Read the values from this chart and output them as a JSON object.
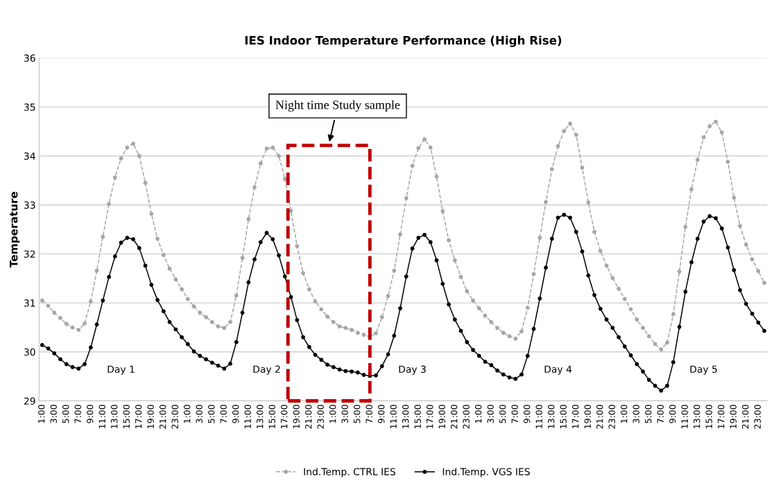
{
  "chart_data": {
    "type": "line",
    "title": "IES Indoor Temperature Performance (High Rise)",
    "ylabel": "Temperature",
    "categories": [
      "1:00",
      null,
      "3:00",
      null,
      "5:00",
      null,
      "7:00",
      null,
      "9:00",
      null,
      "11:00",
      null,
      "13:00",
      null,
      "15:00",
      null,
      "17:00",
      null,
      "19:00",
      null,
      "21:00",
      null,
      "23:00",
      null,
      "1:00",
      null,
      "3:00",
      null,
      "5:00",
      null,
      "7:00",
      null,
      "9:00",
      null,
      "11:00",
      null,
      "13:00",
      null,
      "15:00",
      null,
      "17:00",
      null,
      "19:00",
      null,
      "21:00",
      null,
      "23:00",
      null,
      "1:00",
      null,
      "3:00",
      null,
      "5:00",
      null,
      "7:00",
      null,
      "9:00",
      null,
      "11:00",
      null,
      "13:00",
      null,
      "15:00",
      null,
      "17:00",
      null,
      "19:00",
      null,
      "21:00",
      null,
      "23:00",
      null,
      "1:00",
      null,
      "3:00",
      null,
      "5:00",
      null,
      "7:00",
      null,
      "9:00",
      null,
      "11:00",
      null,
      "13:00",
      null,
      "15:00",
      null,
      "17:00",
      null,
      "19:00",
      null,
      "21:00",
      null,
      "23:00",
      null,
      "1:00",
      null,
      "3:00",
      null,
      "5:00",
      null,
      "7:00",
      null,
      "9:00",
      null,
      "11:00",
      null,
      "13:00",
      null,
      "15:00",
      null,
      "17:00",
      null,
      "19:00",
      null,
      "21:00",
      null,
      "23:00",
      null
    ],
    "series": [
      {
        "name": "Ind.Temp. CTRL IES",
        "color": "#a6a6a6",
        "line_style": "dashed",
        "values": [
          31.05,
          30.94,
          30.8,
          30.69,
          30.57,
          30.5,
          30.45,
          30.58,
          31.03,
          31.66,
          32.35,
          33.02,
          33.56,
          33.95,
          34.17,
          34.25,
          34.0,
          33.45,
          32.82,
          32.31,
          31.98,
          31.7,
          31.48,
          31.28,
          31.08,
          30.93,
          30.8,
          30.71,
          30.61,
          30.52,
          30.49,
          30.61,
          31.15,
          31.92,
          32.71,
          33.36,
          33.85,
          34.15,
          34.17,
          34.0,
          33.53,
          32.88,
          32.16,
          31.61,
          31.28,
          31.03,
          30.87,
          30.72,
          30.61,
          30.52,
          30.49,
          30.45,
          30.39,
          30.35,
          30.31,
          30.38,
          30.71,
          31.14,
          31.66,
          32.4,
          33.14,
          33.8,
          34.16,
          34.34,
          34.17,
          33.58,
          32.87,
          32.28,
          31.87,
          31.53,
          31.24,
          31.05,
          30.89,
          30.74,
          30.61,
          30.49,
          30.39,
          30.32,
          30.27,
          30.42,
          30.9,
          31.59,
          32.33,
          33.06,
          33.73,
          34.2,
          34.51,
          34.66,
          34.43,
          33.76,
          33.05,
          32.45,
          32.06,
          31.76,
          31.51,
          31.29,
          31.08,
          30.87,
          30.66,
          30.49,
          30.32,
          30.16,
          30.05,
          30.19,
          30.77,
          31.64,
          32.55,
          33.32,
          33.92,
          34.38,
          34.61,
          34.7,
          34.48,
          33.88,
          33.15,
          32.57,
          32.19,
          31.89,
          31.65,
          31.41
        ]
      },
      {
        "name": "Ind.Temp. VGS IES",
        "color": "#000000",
        "line_style": "solid",
        "values": [
          30.14,
          30.07,
          29.97,
          29.85,
          29.75,
          29.69,
          29.66,
          29.75,
          30.09,
          30.56,
          31.05,
          31.53,
          31.95,
          32.23,
          32.33,
          32.3,
          32.12,
          31.76,
          31.37,
          31.06,
          30.83,
          30.61,
          30.46,
          30.3,
          30.16,
          30.01,
          29.92,
          29.85,
          29.78,
          29.72,
          29.66,
          29.76,
          30.2,
          30.8,
          31.42,
          31.89,
          32.24,
          32.43,
          32.3,
          31.97,
          31.54,
          31.12,
          30.65,
          30.3,
          30.1,
          29.94,
          29.84,
          29.74,
          29.69,
          29.64,
          29.61,
          29.6,
          29.58,
          29.53,
          29.51,
          29.52,
          29.71,
          29.95,
          30.33,
          30.89,
          31.54,
          32.11,
          32.33,
          32.39,
          32.24,
          31.87,
          31.39,
          30.97,
          30.66,
          30.43,
          30.2,
          30.04,
          29.92,
          29.8,
          29.73,
          29.62,
          29.54,
          29.48,
          29.45,
          29.54,
          29.92,
          30.47,
          31.09,
          31.72,
          32.31,
          32.74,
          32.8,
          32.74,
          32.45,
          32.05,
          31.56,
          31.16,
          30.88,
          30.66,
          30.49,
          30.3,
          30.11,
          29.93,
          29.75,
          29.6,
          29.43,
          29.31,
          29.21,
          29.31,
          29.79,
          30.51,
          31.23,
          31.83,
          32.31,
          32.66,
          32.77,
          32.73,
          32.52,
          32.13,
          31.67,
          31.26,
          30.98,
          30.78,
          30.6,
          30.43
        ]
      }
    ],
    "ylim": [
      29,
      36
    ],
    "yticks": [
      29,
      30,
      31,
      32,
      33,
      34,
      35,
      36
    ],
    "grid": "y",
    "legend": "bottom",
    "marker": "circle",
    "annotations": [
      "Day 1",
      "Day 2",
      "Day 3",
      "Day 4",
      "Day 5",
      "Night time Study sample"
    ]
  }
}
